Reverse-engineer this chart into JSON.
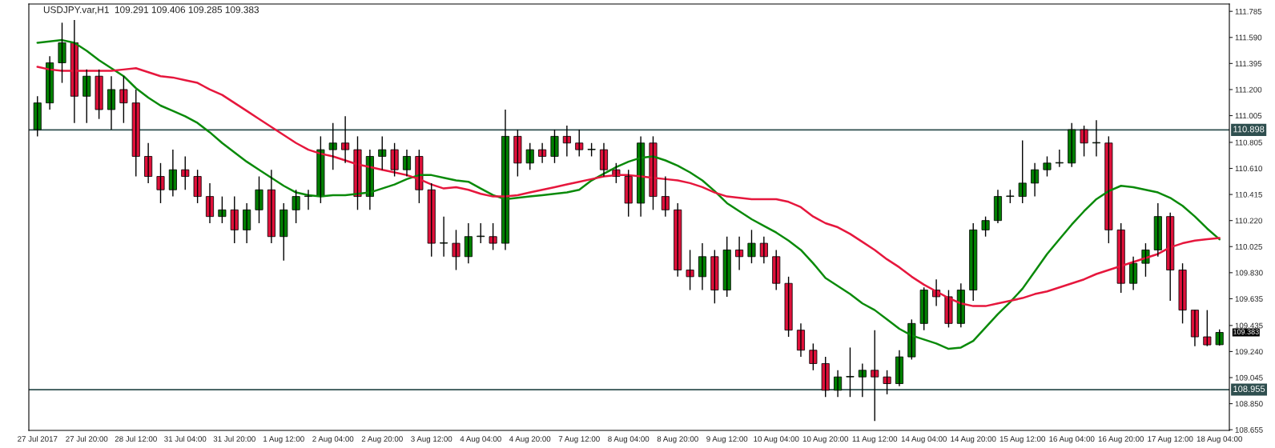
{
  "chart_data": {
    "type": "candlestick",
    "title": "USDJPY.var,H1  109.291 109.406 109.285 109.383",
    "categories": [
      "27 Jul 2017",
      null,
      null,
      null,
      "27 Jul 20:00",
      null,
      null,
      null,
      "28 Jul 12:00",
      null,
      null,
      null,
      "31 Jul 04:00",
      null,
      null,
      null,
      "31 Jul 20:00",
      null,
      null,
      null,
      "1 Aug 12:00",
      null,
      null,
      null,
      "2 Aug 04:00",
      null,
      null,
      null,
      "2 Aug 20:00",
      null,
      null,
      null,
      "3 Aug 12:00",
      null,
      null,
      null,
      "4 Aug 04:00",
      null,
      null,
      null,
      "4 Aug 20:00",
      null,
      null,
      null,
      "7 Aug 12:00",
      null,
      null,
      null,
      "8 Aug 04:00",
      null,
      null,
      null,
      "8 Aug 20:00",
      null,
      null,
      null,
      "9 Aug 12:00",
      null,
      null,
      null,
      "10 Aug 04:00",
      null,
      null,
      null,
      "10 Aug 20:00",
      null,
      null,
      null,
      "11 Aug 12:00",
      null,
      null,
      null,
      "14 Aug 04:00",
      null,
      null,
      null,
      "14 Aug 20:00",
      null,
      null,
      null,
      "15 Aug 12:00",
      null,
      null,
      null,
      "16 Aug 04:00",
      null,
      null,
      null,
      "16 Aug 20:00",
      null,
      null,
      null,
      "17 Aug 12:00",
      null,
      null,
      null,
      "18 Aug 04:00"
    ],
    "ohlc": [
      [
        110.9,
        111.15,
        110.85,
        111.1
      ],
      [
        111.1,
        111.45,
        111.05,
        111.4
      ],
      [
        111.4,
        111.7,
        111.25,
        111.55
      ],
      [
        111.55,
        111.72,
        110.95,
        111.15
      ],
      [
        111.15,
        111.35,
        110.95,
        111.3
      ],
      [
        111.3,
        111.35,
        110.98,
        111.05
      ],
      [
        111.05,
        111.3,
        110.9,
        111.2
      ],
      [
        111.2,
        111.3,
        110.95,
        111.1
      ],
      [
        111.1,
        111.2,
        110.55,
        110.7
      ],
      [
        110.7,
        110.8,
        110.5,
        110.55
      ],
      [
        110.55,
        110.65,
        110.35,
        110.45
      ],
      [
        110.45,
        110.75,
        110.4,
        110.6
      ],
      [
        110.6,
        110.7,
        110.45,
        110.55
      ],
      [
        110.55,
        110.6,
        110.35,
        110.4
      ],
      [
        110.4,
        110.5,
        110.2,
        110.25
      ],
      [
        110.25,
        110.4,
        110.2,
        110.3
      ],
      [
        110.3,
        110.4,
        110.05,
        110.15
      ],
      [
        110.15,
        110.35,
        110.05,
        110.3
      ],
      [
        110.3,
        110.55,
        110.2,
        110.45
      ],
      [
        110.45,
        110.6,
        110.05,
        110.1
      ],
      [
        110.1,
        110.35,
        109.92,
        110.3
      ],
      [
        110.3,
        110.45,
        110.2,
        110.4
      ],
      [
        110.4,
        110.45,
        110.3,
        110.4
      ],
      [
        110.4,
        110.85,
        110.35,
        110.75
      ],
      [
        110.75,
        110.95,
        110.6,
        110.8
      ],
      [
        110.8,
        111.0,
        110.65,
        110.75
      ],
      [
        110.75,
        110.85,
        110.3,
        110.4
      ],
      [
        110.4,
        110.75,
        110.3,
        110.7
      ],
      [
        110.7,
        110.85,
        110.6,
        110.75
      ],
      [
        110.75,
        110.8,
        110.55,
        110.6
      ],
      [
        110.6,
        110.75,
        110.55,
        110.7
      ],
      [
        110.7,
        110.75,
        110.35,
        110.45
      ],
      [
        110.45,
        110.5,
        109.95,
        110.05
      ],
      [
        110.05,
        110.25,
        109.95,
        110.05
      ],
      [
        110.05,
        110.15,
        109.85,
        109.95
      ],
      [
        109.95,
        110.2,
        109.9,
        110.1
      ],
      [
        110.1,
        110.2,
        110.05,
        110.1
      ],
      [
        110.1,
        110.2,
        110.0,
        110.05
      ],
      [
        110.05,
        111.05,
        110.0,
        110.85
      ],
      [
        110.85,
        110.9,
        110.55,
        110.65
      ],
      [
        110.65,
        110.8,
        110.6,
        110.75
      ],
      [
        110.75,
        110.8,
        110.65,
        110.7
      ],
      [
        110.7,
        110.9,
        110.65,
        110.85
      ],
      [
        110.85,
        110.93,
        110.7,
        110.8
      ],
      [
        110.8,
        110.9,
        110.7,
        110.75
      ],
      [
        110.75,
        110.8,
        110.7,
        110.75
      ],
      [
        110.75,
        110.8,
        110.55,
        110.6
      ],
      [
        110.6,
        110.65,
        110.5,
        110.55
      ],
      [
        110.55,
        110.6,
        110.25,
        110.35
      ],
      [
        110.35,
        110.85,
        110.25,
        110.8
      ],
      [
        110.8,
        110.85,
        110.3,
        110.4
      ],
      [
        110.4,
        110.55,
        110.25,
        110.3
      ],
      [
        110.3,
        110.35,
        109.8,
        109.85
      ],
      [
        109.85,
        110.0,
        109.7,
        109.8
      ],
      [
        109.8,
        110.05,
        109.7,
        109.95
      ],
      [
        109.95,
        110.0,
        109.6,
        109.7
      ],
      [
        109.7,
        110.1,
        109.65,
        110.0
      ],
      [
        110.0,
        110.1,
        109.85,
        109.95
      ],
      [
        109.95,
        110.15,
        109.9,
        110.05
      ],
      [
        110.05,
        110.1,
        109.9,
        109.95
      ],
      [
        109.95,
        110.0,
        109.7,
        109.75
      ],
      [
        109.75,
        109.8,
        109.35,
        109.4
      ],
      [
        109.4,
        109.45,
        109.2,
        109.25
      ],
      [
        109.25,
        109.3,
        109.1,
        109.15
      ],
      [
        109.15,
        109.2,
        108.9,
        108.95
      ],
      [
        108.95,
        109.1,
        108.9,
        109.05
      ],
      [
        109.05,
        109.27,
        108.9,
        109.05
      ],
      [
        109.05,
        109.15,
        108.9,
        109.1
      ],
      [
        109.1,
        109.4,
        108.72,
        109.05
      ],
      [
        109.05,
        109.1,
        108.92,
        109.0
      ],
      [
        109.0,
        109.25,
        108.98,
        109.2
      ],
      [
        109.2,
        109.48,
        109.18,
        109.45
      ],
      [
        109.45,
        109.72,
        109.4,
        109.7
      ],
      [
        109.7,
        109.78,
        109.58,
        109.65
      ],
      [
        109.65,
        109.7,
        109.42,
        109.45
      ],
      [
        109.45,
        109.75,
        109.42,
        109.7
      ],
      [
        109.7,
        110.2,
        109.62,
        110.15
      ],
      [
        110.15,
        110.25,
        110.1,
        110.22
      ],
      [
        110.22,
        110.45,
        110.2,
        110.4
      ],
      [
        110.4,
        110.45,
        110.35,
        110.4
      ],
      [
        110.4,
        110.82,
        110.35,
        110.5
      ],
      [
        110.5,
        110.65,
        110.4,
        110.6
      ],
      [
        110.6,
        110.7,
        110.55,
        110.65
      ],
      [
        110.65,
        110.75,
        110.62,
        110.65
      ],
      [
        110.65,
        110.95,
        110.62,
        110.9
      ],
      [
        110.9,
        110.93,
        110.7,
        110.8
      ],
      [
        110.8,
        110.97,
        110.7,
        110.8
      ],
      [
        110.8,
        110.85,
        110.05,
        110.15
      ],
      [
        110.15,
        110.2,
        109.68,
        109.75
      ],
      [
        109.75,
        109.95,
        109.7,
        109.9
      ],
      [
        109.9,
        110.05,
        109.8,
        110.0
      ],
      [
        110.0,
        110.35,
        109.95,
        110.25
      ],
      [
        110.25,
        110.28,
        109.62,
        109.85
      ],
      [
        109.85,
        109.9,
        109.45,
        109.55
      ],
      [
        109.55,
        109.55,
        109.28,
        109.35
      ],
      [
        109.35,
        109.55,
        109.28,
        109.29
      ],
      [
        109.291,
        109.406,
        109.285,
        109.383
      ]
    ],
    "colors": [
      "#008000",
      "#008000",
      "#008000",
      "#e0103a",
      "#008000",
      "#e0103a",
      "#008000",
      "#e0103a",
      "#e0103a",
      "#e0103a",
      "#e0103a",
      "#008000",
      "#e0103a",
      "#e0103a",
      "#e0103a",
      "#008000",
      "#e0103a",
      "#008000",
      "#008000",
      "#e0103a",
      "#008000",
      "#008000",
      "#008000",
      "#008000",
      "#008000",
      "#e0103a",
      "#e0103a",
      "#008000",
      "#008000",
      "#e0103a",
      "#008000",
      "#e0103a",
      "#e0103a",
      "#008000",
      "#e0103a",
      "#008000",
      "#008000",
      "#e0103a",
      "#008000",
      "#e0103a",
      "#008000",
      "#e0103a",
      "#008000",
      "#e0103a",
      "#e0103a",
      "#008000",
      "#e0103a",
      "#e0103a",
      "#e0103a",
      "#008000",
      "#e0103a",
      "#e0103a",
      "#e0103a",
      "#e0103a",
      "#008000",
      "#e0103a",
      "#008000",
      "#e0103a",
      "#008000",
      "#e0103a",
      "#e0103a",
      "#e0103a",
      "#e0103a",
      "#e0103a",
      "#e0103a",
      "#008000",
      "#008000",
      "#008000",
      "#e0103a",
      "#e0103a",
      "#008000",
      "#008000",
      "#008000",
      "#e0103a",
      "#e0103a",
      "#008000",
      "#008000",
      "#008000",
      "#008000",
      "#008000",
      "#008000",
      "#008000",
      "#008000",
      "#008000",
      "#008000",
      "#e0103a",
      "#008000",
      "#e0103a",
      "#e0103a",
      "#008000",
      "#008000",
      "#008000",
      "#e0103a",
      "#e0103a",
      "#e0103a",
      "#e0103a",
      "#008000"
    ],
    "series": [
      {
        "type": "line",
        "color": "#0a8a0a",
        "values": [
          111.55,
          111.56,
          111.57,
          111.55,
          111.49,
          111.42,
          111.36,
          111.3,
          111.21,
          111.14,
          111.08,
          111.04,
          111.0,
          110.95,
          110.88,
          110.8,
          110.73,
          110.66,
          110.6,
          110.54,
          110.48,
          110.43,
          110.41,
          110.4,
          110.41,
          110.41,
          110.42,
          110.43,
          110.46,
          110.49,
          110.53,
          110.56,
          110.56,
          110.54,
          110.52,
          110.51,
          110.46,
          110.41,
          110.38,
          110.39,
          110.4,
          110.41,
          110.42,
          110.43,
          110.45,
          110.52,
          110.57,
          110.62,
          110.66,
          110.69,
          110.7,
          110.67,
          110.63,
          110.58,
          110.52,
          110.44,
          110.35,
          110.29,
          110.23,
          110.18,
          110.13,
          110.07,
          110.0,
          109.9,
          109.79,
          109.73,
          109.67,
          109.6,
          109.55,
          109.48,
          109.41,
          109.36,
          109.33,
          109.3,
          109.26,
          109.27,
          109.32,
          109.42,
          109.52,
          109.61,
          109.71,
          109.84,
          109.97,
          110.08,
          110.19,
          110.29,
          110.38,
          110.44,
          110.48,
          110.47,
          110.45,
          110.43,
          110.39,
          110.33,
          110.25,
          110.16,
          110.08
        ]
      },
      {
        "type": "line",
        "color": "#e6173d",
        "values": [
          111.37,
          111.35,
          111.34,
          111.34,
          111.34,
          111.34,
          111.34,
          111.35,
          111.36,
          111.33,
          111.3,
          111.29,
          111.27,
          111.25,
          111.2,
          111.16,
          111.1,
          111.04,
          110.98,
          110.92,
          110.86,
          110.8,
          110.75,
          110.72,
          110.7,
          110.67,
          110.64,
          110.62,
          110.6,
          110.58,
          110.56,
          110.53,
          110.49,
          110.46,
          110.47,
          110.45,
          110.42,
          110.4,
          110.4,
          110.41,
          110.43,
          110.45,
          110.47,
          110.49,
          110.51,
          110.53,
          110.55,
          110.56,
          110.56,
          110.55,
          110.54,
          110.53,
          110.52,
          110.5,
          110.47,
          110.43,
          110.4,
          110.39,
          110.38,
          110.38,
          110.38,
          110.36,
          110.32,
          110.25,
          110.2,
          110.17,
          110.12,
          110.06,
          110.0,
          109.93,
          109.87,
          109.8,
          109.74,
          109.69,
          109.64,
          109.6,
          109.58,
          109.58,
          109.6,
          109.62,
          109.64,
          109.67,
          109.69,
          109.72,
          109.75,
          109.78,
          109.82,
          109.85,
          109.88,
          109.91,
          109.94,
          109.97,
          110.02,
          110.05,
          110.07,
          110.08,
          110.09
        ]
      }
    ],
    "ylim": [
      108.65,
      111.84
    ],
    "yticks": [
      {
        "value": 108.655,
        "label": "108.655"
      },
      {
        "value": 108.85,
        "label": "108.850"
      },
      {
        "value": 109.045,
        "label": "109.045"
      },
      {
        "value": 109.24,
        "label": "109.240"
      },
      {
        "value": 109.435,
        "label": "109.435"
      },
      {
        "value": 109.635,
        "label": "109.635"
      },
      {
        "value": 109.83,
        "label": "109.830"
      },
      {
        "value": 110.025,
        "label": "110.025"
      },
      {
        "value": 110.22,
        "label": "110.220"
      },
      {
        "value": 110.415,
        "label": "110.415"
      },
      {
        "value": 110.61,
        "label": "110.610"
      },
      {
        "value": 110.805,
        "label": "110.805"
      },
      {
        "value": 111.005,
        "label": "111.005"
      },
      {
        "value": 111.2,
        "label": "111.200"
      },
      {
        "value": 111.395,
        "label": "111.395"
      },
      {
        "value": 111.59,
        "label": "111.590"
      },
      {
        "value": 111.785,
        "label": "111.785"
      }
    ],
    "ref_lines": [
      {
        "axis": "y",
        "value": 110.898,
        "label": "110.898",
        "color": "#2f4f4f"
      },
      {
        "axis": "y",
        "value": 108.955,
        "label": "108.955",
        "color": "#2f4f4f"
      }
    ],
    "annotations": [
      "109.383"
    ],
    "grid": false,
    "legend": false
  }
}
